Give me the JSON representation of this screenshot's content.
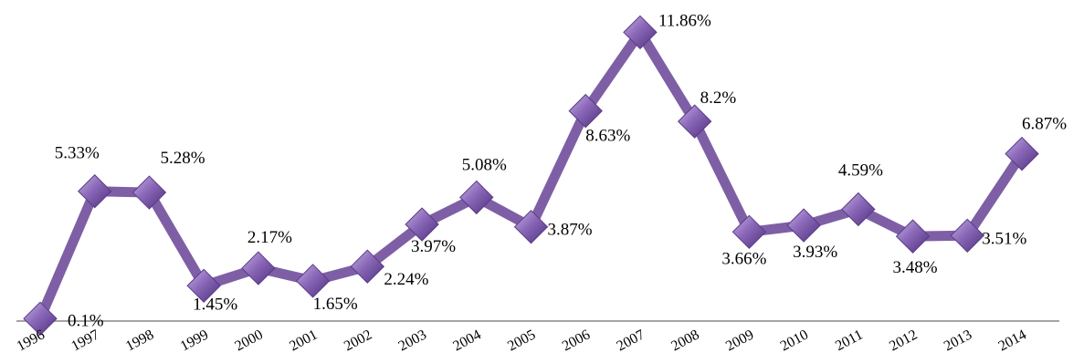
{
  "chart_data": {
    "type": "line",
    "title": "",
    "xlabel": "",
    "ylabel": "",
    "x": [
      "1996",
      "1997",
      "1998",
      "1999",
      "2000",
      "2001",
      "2002",
      "2003",
      "2004",
      "2005",
      "2006",
      "2007",
      "2008",
      "2009",
      "2010",
      "2011",
      "2012",
      "2013",
      "2014"
    ],
    "series": [
      {
        "values": [
          0.1,
          5.33,
          5.28,
          1.45,
          2.17,
          1.65,
          2.24,
          3.97,
          5.08,
          3.87,
          8.63,
          11.86,
          8.2,
          3.66,
          3.93,
          4.59,
          3.48,
          3.51,
          6.87
        ],
        "labels": [
          "0.1%",
          "5.33%",
          "5.28%",
          "1.45%",
          "2.17%",
          "1.65%",
          "2.24%",
          "3.97%",
          "5.08%",
          "3.87%",
          "8.63%",
          "11.86%",
          "8.2%",
          "3.66%",
          "3.93%",
          "4.59%",
          "3.48%",
          "3.51%",
          "6.87%"
        ]
      }
    ],
    "ylim": [
      0,
      12.7
    ],
    "grid": false,
    "legend": "none",
    "colors": {
      "line": "#7E5FA6",
      "marker": "#7B55A8",
      "axis": "#868686"
    }
  }
}
